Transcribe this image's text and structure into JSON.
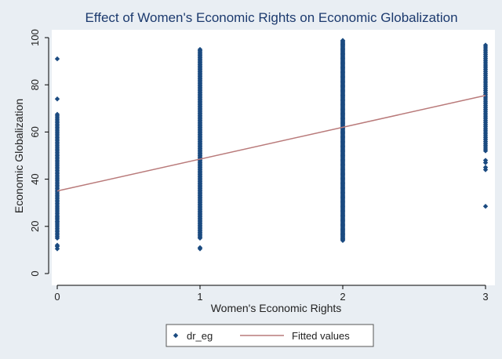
{
  "chart_data": {
    "type": "scatter",
    "title": "Effect of Women's Economic Rights on Economic Globalization",
    "xlabel": "Women's Economic Rights",
    "ylabel": "Economic Globalization",
    "xlim": [
      0,
      3
    ],
    "ylim": [
      0,
      100
    ],
    "xticks": [
      "0",
      "1",
      "2",
      "3"
    ],
    "yticks": [
      "0",
      "20",
      "40",
      "60",
      "80",
      "100"
    ],
    "grid": false,
    "legend_position": "bottom",
    "series": [
      {
        "name": "dr_eg",
        "kind": "scatter",
        "color": "#1a4a80",
        "groups": [
          {
            "x": 0,
            "ymin": 15,
            "ymax": 68,
            "step": 0.7,
            "extra": [
              10.5,
              11.5,
              12,
              22,
              24,
              74,
              91
            ]
          },
          {
            "x": 1,
            "ymin": 15,
            "ymax": 95,
            "step": 0.5,
            "extra": [
              10.5,
              11
            ]
          },
          {
            "x": 2,
            "ymin": 14,
            "ymax": 99,
            "step": 0.4,
            "extra": []
          },
          {
            "x": 3,
            "ymin": 52,
            "ymax": 97,
            "step": 0.8,
            "extra": [
              28.5,
              44,
              45,
              47,
              48
            ]
          }
        ]
      },
      {
        "name": "Fitted values",
        "kind": "line",
        "color": "#b97a7a",
        "x": [
          0,
          3
        ],
        "y": [
          35,
          75.5
        ]
      }
    ]
  }
}
